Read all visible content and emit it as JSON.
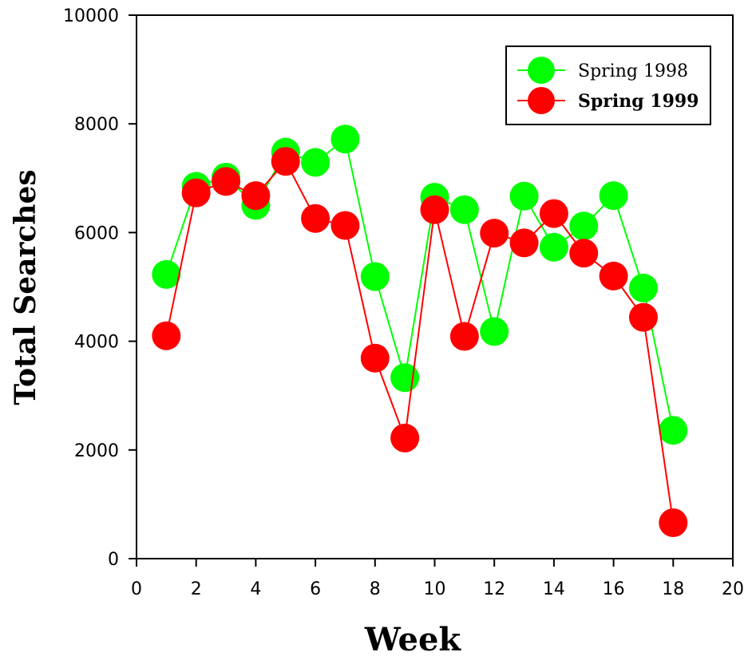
{
  "chart_data": {
    "type": "scatter",
    "title": "",
    "xlabel": "Week",
    "ylabel": "Total Searches",
    "xlim": [
      0,
      20
    ],
    "ylim": [
      0,
      10000
    ],
    "x_ticks": [
      "0",
      "2",
      "4",
      "6",
      "8",
      "10",
      "12",
      "14",
      "16",
      "18",
      "20"
    ],
    "y_ticks": [
      "0",
      "2000",
      "4000",
      "6000",
      "8000",
      "10000"
    ],
    "grid": false,
    "legend_position": "top-right",
    "series": [
      {
        "name": "Spring 1998",
        "color": "#00ff00",
        "x": [
          1,
          2,
          3,
          4,
          5,
          6,
          7,
          8,
          9,
          10,
          11,
          12,
          13,
          14,
          15,
          16,
          17,
          18
        ],
        "values": [
          5230,
          6850,
          7020,
          6500,
          7480,
          7290,
          7720,
          5190,
          3330,
          6650,
          6420,
          4180,
          6670,
          5730,
          6120,
          6680,
          4980,
          2360
        ]
      },
      {
        "name": "Spring 1999",
        "color": "#ff0000",
        "x": [
          1,
          2,
          3,
          4,
          5,
          6,
          7,
          8,
          9,
          10,
          11,
          12,
          13,
          14,
          15,
          16,
          17,
          18
        ],
        "values": [
          4100,
          6730,
          6940,
          6680,
          7310,
          6260,
          6130,
          3690,
          2220,
          6420,
          4090,
          5990,
          5810,
          6350,
          5620,
          5200,
          4440,
          660
        ]
      }
    ]
  }
}
